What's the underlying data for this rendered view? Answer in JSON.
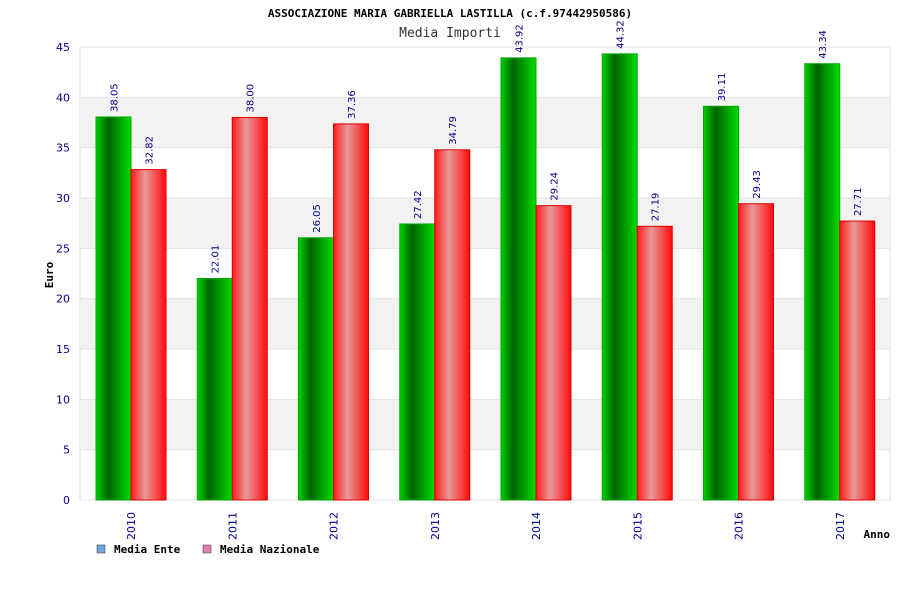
{
  "chart_data": {
    "type": "bar",
    "title": "ASSOCIAZIONE MARIA GABRIELLA LASTILLA (c.f.97442950586)",
    "subtitle": "Media Importi",
    "xlabel": "Anno",
    "ylabel": "Euro",
    "ylim": [
      0,
      45
    ],
    "yticks": [
      0,
      5,
      10,
      15,
      20,
      25,
      30,
      35,
      40,
      45
    ],
    "categories": [
      "2010",
      "2011",
      "2012",
      "2013",
      "2014",
      "2015",
      "2016",
      "2017"
    ],
    "series": [
      {
        "name": "Media Ente",
        "values": [
          38.05,
          22.01,
          26.05,
          27.42,
          43.92,
          44.32,
          39.11,
          43.34
        ],
        "labels": [
          "38.05",
          "22.01",
          "26.05",
          "27.42",
          "43.92",
          "44.32",
          "39.11",
          "43.34"
        ],
        "color": "#00cc00",
        "legend_color": "#6fa8dc"
      },
      {
        "name": "Media Nazionale",
        "values": [
          32.82,
          38.0,
          37.36,
          34.79,
          29.24,
          27.19,
          29.43,
          27.71
        ],
        "labels": [
          "32.82",
          "38.00",
          "37.36",
          "34.79",
          "29.24",
          "27.19",
          "29.43",
          "27.71"
        ],
        "color": "#ff0000",
        "legend_color": "#e07fb0"
      }
    ],
    "grid": true,
    "legend": "bottom-left"
  }
}
